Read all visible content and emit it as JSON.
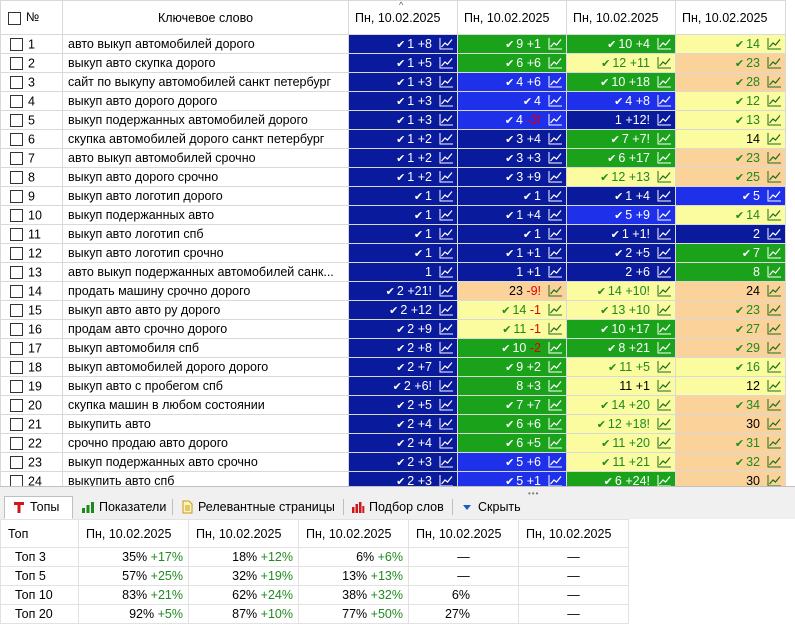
{
  "header": {
    "num": "№",
    "keyword": "Ключевое слово",
    "dates": [
      "Пн, 10.02.2025",
      "Пн, 10.02.2025",
      "Пн, 10.02.2025",
      "Пн, 10.02.2025"
    ]
  },
  "colors": {
    "navy": "#0a1a9c",
    "blue": "#1f30ea",
    "green": "#1aa31a",
    "yellow": "#fbfba0",
    "orange": "#fbd29a",
    "positive_text": "#1f8a1f",
    "negative_text": "#e00000"
  },
  "rows": [
    {
      "n": "1",
      "kw": "авто выкуп автомобилей дорого",
      "c": [
        [
          "navy",
          true,
          "1",
          "+8"
        ],
        [
          "green",
          true,
          "9",
          "+1"
        ],
        [
          "green",
          true,
          "10",
          "+4"
        ],
        [
          "yellow",
          true,
          "14",
          ""
        ]
      ]
    },
    {
      "n": "2",
      "kw": "выкуп авто скупка дорого",
      "c": [
        [
          "navy",
          true,
          "1",
          "+5"
        ],
        [
          "green",
          true,
          "6",
          "+6"
        ],
        [
          "yellow",
          true,
          "12",
          "+11"
        ],
        [
          "orange",
          true,
          "23",
          ""
        ]
      ]
    },
    {
      "n": "3",
      "kw": "сайт по выкупу автомобилей санкт петербург",
      "c": [
        [
          "navy",
          true,
          "1",
          "+3"
        ],
        [
          "blue",
          true,
          "4",
          "+6"
        ],
        [
          "green",
          true,
          "10",
          "+18"
        ],
        [
          "orange",
          true,
          "28",
          ""
        ]
      ]
    },
    {
      "n": "4",
      "kw": "выкуп авто дорого дорого",
      "c": [
        [
          "navy",
          true,
          "1",
          "+3"
        ],
        [
          "blue",
          true,
          "4",
          ""
        ],
        [
          "blue",
          true,
          "4",
          "+8"
        ],
        [
          "yellow",
          true,
          "12",
          ""
        ]
      ]
    },
    {
      "n": "5",
      "kw": "выкуп подержанных автомобилей дорого",
      "c": [
        [
          "navy",
          true,
          "1",
          "+3"
        ],
        [
          "blue",
          true,
          "4",
          "-3!"
        ],
        [
          "navy",
          false,
          "1",
          "+12!"
        ],
        [
          "yellow",
          true,
          "13",
          ""
        ]
      ]
    },
    {
      "n": "6",
      "kw": "скупка автомобилей дорого санкт петербург",
      "c": [
        [
          "navy",
          true,
          "1",
          "+2"
        ],
        [
          "navy",
          true,
          "3",
          "+4"
        ],
        [
          "green",
          true,
          "7",
          "+7!"
        ],
        [
          "yellow",
          false,
          "14",
          ""
        ]
      ]
    },
    {
      "n": "7",
      "kw": "авто выкуп автомобилей срочно",
      "c": [
        [
          "navy",
          true,
          "1",
          "+2"
        ],
        [
          "navy",
          true,
          "3",
          "+3"
        ],
        [
          "green",
          true,
          "6",
          "+17"
        ],
        [
          "orange",
          true,
          "23",
          ""
        ]
      ]
    },
    {
      "n": "8",
      "kw": "выкуп авто дорого срочно",
      "c": [
        [
          "navy",
          true,
          "1",
          "+2"
        ],
        [
          "navy",
          true,
          "3",
          "+9"
        ],
        [
          "yellow",
          true,
          "12",
          "+13"
        ],
        [
          "orange",
          true,
          "25",
          ""
        ]
      ]
    },
    {
      "n": "9",
      "kw": "выкуп авто логотип дорого",
      "c": [
        [
          "navy",
          true,
          "1",
          ""
        ],
        [
          "navy",
          true,
          "1",
          ""
        ],
        [
          "navy",
          true,
          "1",
          "+4"
        ],
        [
          "blue",
          true,
          "5",
          ""
        ]
      ]
    },
    {
      "n": "10",
      "kw": "выкуп подержанных авто",
      "c": [
        [
          "navy",
          true,
          "1",
          ""
        ],
        [
          "navy",
          true,
          "1",
          "+4"
        ],
        [
          "blue",
          true,
          "5",
          "+9"
        ],
        [
          "yellow",
          true,
          "14",
          ""
        ]
      ]
    },
    {
      "n": "11",
      "kw": "выкуп авто логотип спб",
      "c": [
        [
          "navy",
          true,
          "1",
          ""
        ],
        [
          "navy",
          true,
          "1",
          ""
        ],
        [
          "navy",
          true,
          "1",
          "+1!"
        ],
        [
          "navy",
          false,
          "2",
          ""
        ]
      ]
    },
    {
      "n": "12",
      "kw": "выкуп авто логотип срочно",
      "c": [
        [
          "navy",
          true,
          "1",
          ""
        ],
        [
          "navy",
          true,
          "1",
          "+1"
        ],
        [
          "navy",
          true,
          "2",
          "+5"
        ],
        [
          "green",
          true,
          "7",
          ""
        ]
      ]
    },
    {
      "n": "13",
      "kw": "авто выкуп подержанных автомобилей санк...",
      "c": [
        [
          "navy",
          false,
          "1",
          ""
        ],
        [
          "navy",
          false,
          "1",
          "+1"
        ],
        [
          "navy",
          false,
          "2",
          "+6"
        ],
        [
          "green",
          false,
          "8",
          ""
        ]
      ]
    },
    {
      "n": "14",
      "kw": "продать машину срочно дорого",
      "c": [
        [
          "navy",
          true,
          "2",
          "+21!"
        ],
        [
          "orange",
          false,
          "23",
          "-9!"
        ],
        [
          "yellow",
          true,
          "14",
          "+10!"
        ],
        [
          "orange",
          false,
          "24",
          ""
        ]
      ]
    },
    {
      "n": "15",
      "kw": "выкуп авто авто ру дорого",
      "c": [
        [
          "navy",
          true,
          "2",
          "+12"
        ],
        [
          "yellow",
          true,
          "14",
          "-1"
        ],
        [
          "yellow",
          true,
          "13",
          "+10"
        ],
        [
          "orange",
          true,
          "23",
          ""
        ]
      ]
    },
    {
      "n": "16",
      "kw": "продам авто срочно дорого",
      "c": [
        [
          "navy",
          true,
          "2",
          "+9"
        ],
        [
          "yellow",
          true,
          "11",
          "-1"
        ],
        [
          "green",
          true,
          "10",
          "+17"
        ],
        [
          "orange",
          true,
          "27",
          ""
        ]
      ]
    },
    {
      "n": "17",
      "kw": "выкуп автомобиля спб",
      "c": [
        [
          "navy",
          true,
          "2",
          "+8"
        ],
        [
          "green",
          true,
          "10",
          "-2"
        ],
        [
          "green",
          true,
          "8",
          "+21"
        ],
        [
          "orange",
          true,
          "29",
          ""
        ]
      ]
    },
    {
      "n": "18",
      "kw": "выкуп автомобилей дорого дорого",
      "c": [
        [
          "navy",
          true,
          "2",
          "+7"
        ],
        [
          "green",
          true,
          "9",
          "+2"
        ],
        [
          "yellow",
          true,
          "11",
          "+5"
        ],
        [
          "yellow",
          true,
          "16",
          ""
        ]
      ]
    },
    {
      "n": "19",
      "kw": "выкуп авто с пробегом спб",
      "c": [
        [
          "navy",
          true,
          "2",
          "+6!"
        ],
        [
          "green",
          false,
          "8",
          "+3"
        ],
        [
          "yellow",
          false,
          "11",
          "+1"
        ],
        [
          "yellow",
          false,
          "12",
          ""
        ]
      ]
    },
    {
      "n": "20",
      "kw": "скупка машин в любом состоянии",
      "c": [
        [
          "navy",
          true,
          "2",
          "+5"
        ],
        [
          "green",
          true,
          "7",
          "+7"
        ],
        [
          "yellow",
          true,
          "14",
          "+20"
        ],
        [
          "orange",
          true,
          "34",
          ""
        ]
      ]
    },
    {
      "n": "21",
      "kw": "выкупить авто",
      "c": [
        [
          "navy",
          true,
          "2",
          "+4"
        ],
        [
          "green",
          true,
          "6",
          "+6"
        ],
        [
          "yellow",
          true,
          "12",
          "+18!"
        ],
        [
          "orange",
          false,
          "30",
          ""
        ]
      ]
    },
    {
      "n": "22",
      "kw": "срочно продаю авто дорого",
      "c": [
        [
          "navy",
          true,
          "2",
          "+4"
        ],
        [
          "green",
          true,
          "6",
          "+5"
        ],
        [
          "yellow",
          true,
          "11",
          "+20"
        ],
        [
          "orange",
          true,
          "31",
          ""
        ]
      ]
    },
    {
      "n": "23",
      "kw": "выкуп подержанных авто срочно",
      "c": [
        [
          "navy",
          true,
          "2",
          "+3"
        ],
        [
          "blue",
          true,
          "5",
          "+6"
        ],
        [
          "yellow",
          true,
          "11",
          "+21"
        ],
        [
          "orange",
          true,
          "32",
          ""
        ]
      ]
    },
    {
      "n": "24",
      "kw": "выкупить авто спб",
      "c": [
        [
          "navy",
          true,
          "2",
          "+3"
        ],
        [
          "blue",
          true,
          "5",
          "+1"
        ],
        [
          "green",
          true,
          "6",
          "+24!"
        ],
        [
          "orange",
          false,
          "30",
          ""
        ]
      ]
    }
  ],
  "tabs": [
    {
      "label": "Топы",
      "icon": "tops-icon",
      "active": true
    },
    {
      "label": "Показатели",
      "icon": "bar-chart-icon",
      "active": false
    },
    {
      "label": "Релевантные страницы",
      "icon": "document-icon",
      "active": false
    },
    {
      "label": "Подбор слов",
      "icon": "word-selection-icon",
      "active": false
    },
    {
      "label": "Скрыть",
      "icon": "hide-arrow-icon",
      "active": false
    }
  ],
  "tops": {
    "header": [
      "Топ",
      "Пн, 10.02.2025",
      "Пн, 10.02.2025",
      "Пн, 10.02.2025",
      "Пн, 10.02.2025",
      "Пн, 10.02.2025"
    ],
    "rows": [
      {
        "label": "Топ 3",
        "vals": [
          [
            "35%",
            "+17%"
          ],
          [
            "18%",
            "+12%"
          ],
          [
            "6%",
            "+6%"
          ],
          [
            "—",
            ""
          ],
          [
            "—",
            ""
          ]
        ]
      },
      {
        "label": "Топ 5",
        "vals": [
          [
            "57%",
            "+25%"
          ],
          [
            "32%",
            "+19%"
          ],
          [
            "13%",
            "+13%"
          ],
          [
            "—",
            ""
          ],
          [
            "—",
            ""
          ]
        ]
      },
      {
        "label": "Топ 10",
        "vals": [
          [
            "83%",
            "+21%"
          ],
          [
            "62%",
            "+24%"
          ],
          [
            "38%",
            "+32%"
          ],
          [
            "6%",
            ""
          ],
          [
            "—",
            ""
          ]
        ]
      },
      {
        "label": "Топ 20",
        "vals": [
          [
            "92%",
            "+5%"
          ],
          [
            "87%",
            "+10%"
          ],
          [
            "77%",
            "+50%"
          ],
          [
            "27%",
            ""
          ],
          [
            "—",
            ""
          ]
        ]
      }
    ]
  }
}
